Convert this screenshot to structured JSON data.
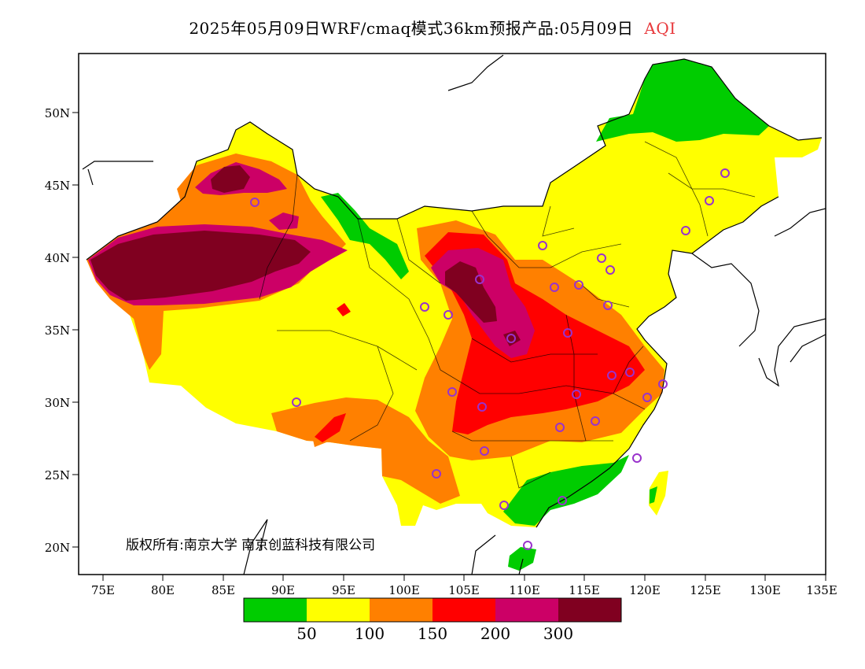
{
  "title": {
    "main": "2025年05月09日WRF/cmaq模式36km预报产品:05月09日",
    "variable": "AQI"
  },
  "map": {
    "lon_range": [
      73,
      135
    ],
    "lat_range": [
      18,
      54
    ],
    "lon_ticks": [
      "75E",
      "80E",
      "85E",
      "90E",
      "95E",
      "100E",
      "105E",
      "110E",
      "115E",
      "120E",
      "125E",
      "130E",
      "135E"
    ],
    "lat_ticks": [
      "50N",
      "45N",
      "40N",
      "35N",
      "30N",
      "25N",
      "20N"
    ],
    "copyright": "版权所有:南京大学 南京创蓝科技有限公司"
  },
  "legend": {
    "colors": [
      "#00cc00",
      "#ffff00",
      "#ff8000",
      "#ff0000",
      "#cc0066",
      "#800020"
    ],
    "labels": [
      "50",
      "100",
      "150",
      "200",
      "300"
    ]
  }
}
